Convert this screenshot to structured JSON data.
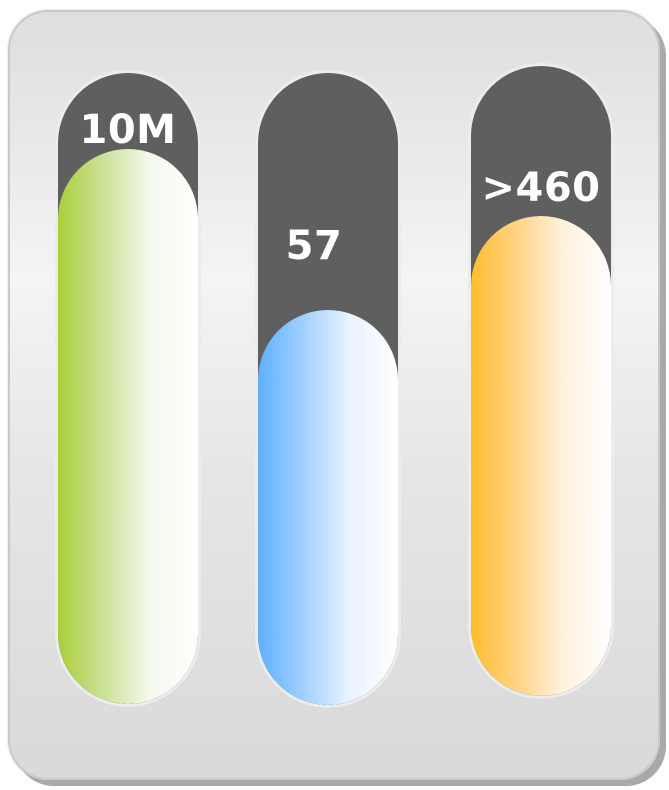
{
  "gauges": [
    {
      "name": "gauge-1",
      "label": "10M",
      "fill_level": 0.88,
      "color": "#a9ce3a"
    },
    {
      "name": "gauge-2",
      "label": "57",
      "fill_level": 0.62,
      "color": "#5eb0ff"
    },
    {
      "name": "gauge-3",
      "label": ">460",
      "fill_level": 0.82,
      "color": "#ffbd2c"
    }
  ]
}
